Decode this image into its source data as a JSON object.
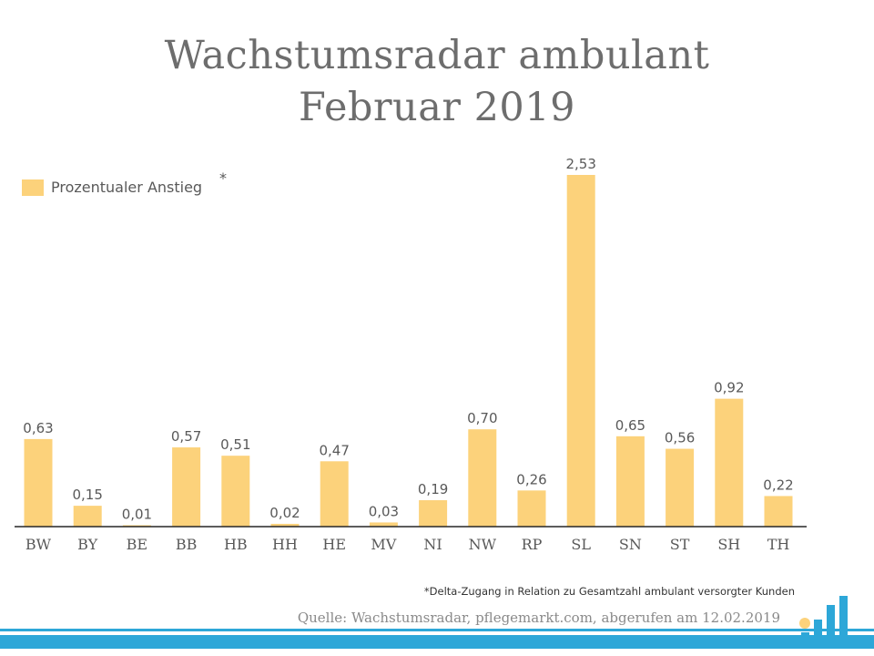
{
  "title": {
    "line1": "Wachstumsradar ambulant",
    "line2": "Februar 2019"
  },
  "legend": {
    "label": "Prozentualer Anstieg",
    "marker": "*"
  },
  "footnote": "*Delta-Zugang in Relation zu Gesamtzahl ambulant versorgter Kunden",
  "source": "Quelle: Wachstumsradar, pflegemarkt.com, abgerufen am 12.02.2019",
  "colors": {
    "bar": "#FCD27B",
    "axis": "#262626",
    "stripe": "#2DA7D8",
    "title": "#6d6d6d"
  },
  "logo": {
    "icon": "bar-growth-logo-icon"
  },
  "chart_data": {
    "type": "bar",
    "title": "Wachstumsradar ambulant Februar 2019",
    "xlabel": "",
    "ylabel": "",
    "ylim": [
      0,
      2.6
    ],
    "grid": false,
    "legend_position": "top-left",
    "categories": [
      "BW",
      "BY",
      "BE",
      "BB",
      "HB",
      "HH",
      "HE",
      "MV",
      "NI",
      "NW",
      "RP",
      "SL",
      "SN",
      "ST",
      "SH",
      "TH"
    ],
    "series": [
      {
        "name": "Prozentualer Anstieg",
        "values": [
          0.63,
          0.15,
          0.01,
          0.57,
          0.51,
          0.02,
          0.47,
          0.03,
          0.19,
          0.7,
          0.26,
          2.53,
          0.65,
          0.56,
          0.92,
          0.22
        ],
        "labels": [
          "0,63",
          "0,15",
          "0,01",
          "0,57",
          "0,51",
          "0,02",
          "0,47",
          "0,03",
          "0,19",
          "0,70",
          "0,26",
          "2,53",
          "0,65",
          "0,56",
          "0,92",
          "0,22"
        ]
      }
    ]
  }
}
